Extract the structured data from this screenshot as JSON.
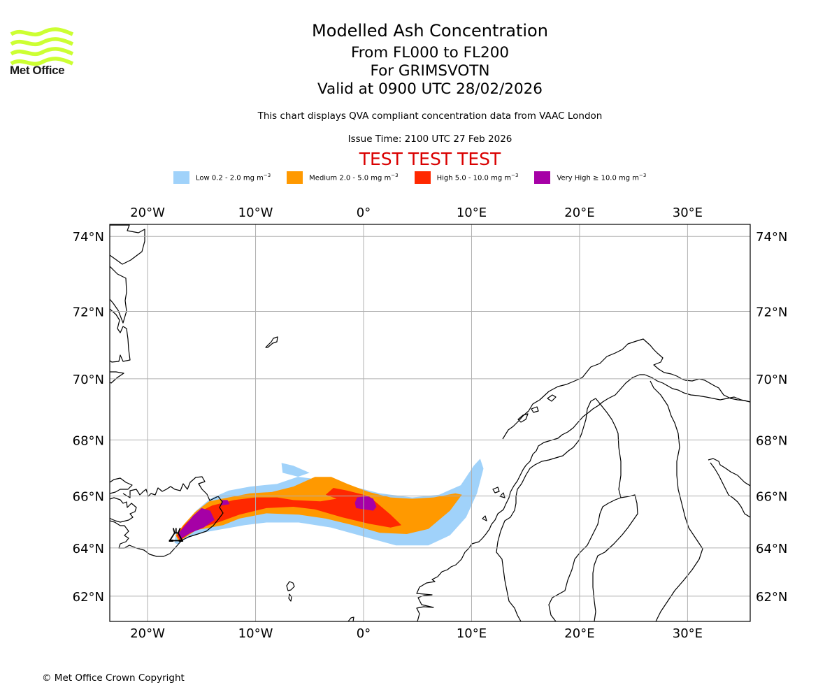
{
  "logo": {
    "text": "Met Office",
    "icon": "met-office-waves-logo",
    "color": "#ccff33"
  },
  "title": {
    "main": "Modelled Ash Concentration",
    "levels": "From FL000 to FL200",
    "volcano": "For GRIMSVOTN",
    "valid": "Valid at 0900 UTC 28/02/2026"
  },
  "subtitle": {
    "description": "This chart displays QVA compliant concentration data from VAAC London",
    "issue_time": "Issue Time: 2100 UTC 27 Feb 2026",
    "test_banner": "TEST TEST TEST",
    "test_color": "#d90000"
  },
  "legend": [
    {
      "label": "Low 0.2 - 2.0 mg m",
      "unit_exp": "−3",
      "color": "#a0d2fa"
    },
    {
      "label": "Medium 2.0 - 5.0 mg m",
      "unit_exp": "−3",
      "color": "#ff9900"
    },
    {
      "label": "High 5.0 - 10.0 mg m",
      "unit_exp": "−3",
      "color": "#ff2800"
    },
    {
      "label": "Very High ≥ 10.0 mg m",
      "unit_exp": "−3",
      "color": "#a600a6"
    }
  ],
  "chart_data": {
    "type": "heatmap",
    "title": "Modelled Ash Concentration",
    "projection": "mercator",
    "extent": {
      "lon": [
        -23.5,
        35.8
      ],
      "lat": [
        60.9,
        74.3
      ]
    },
    "grid": true,
    "x_ticks": [
      "20°W",
      "10°W",
      "0°",
      "10°E",
      "20°E",
      "30°E"
    ],
    "x_tick_values": [
      -20,
      -10,
      0,
      10,
      20,
      30
    ],
    "y_ticks": [
      "74°N",
      "72°N",
      "70°N",
      "68°N",
      "66°N",
      "64°N",
      "62°N"
    ],
    "y_tick_values": [
      74,
      72,
      70,
      68,
      66,
      64,
      62
    ],
    "volcano": {
      "name": "GRIMSVOTN",
      "lon": -17.3,
      "lat": 64.4,
      "symbol": "volcano-icon"
    },
    "levels": [
      {
        "name": "Low",
        "range": "0.2 - 2.0",
        "color": "#a0d2fa",
        "polygon": [
          [
            -17.2,
            64.15
          ],
          [
            -16.5,
            64.35
          ],
          [
            -15,
            64.6
          ],
          [
            -13,
            64.75
          ],
          [
            -11,
            64.9
          ],
          [
            -9,
            65.0
          ],
          [
            -6,
            65.0
          ],
          [
            -3,
            64.8
          ],
          [
            0,
            64.45
          ],
          [
            3,
            64.1
          ],
          [
            6,
            64.1
          ],
          [
            8,
            64.5
          ],
          [
            9.5,
            65.2
          ],
          [
            10.5,
            66.1
          ],
          [
            11.1,
            67.0
          ],
          [
            10.8,
            67.35
          ],
          [
            10.2,
            67.1
          ],
          [
            9,
            66.4
          ],
          [
            7,
            66.05
          ],
          [
            4.5,
            65.95
          ],
          [
            1.5,
            66.1
          ],
          [
            -0.5,
            66.3
          ],
          [
            -2.5,
            66.45
          ],
          [
            -4,
            66.6
          ],
          [
            -6,
            66.7
          ],
          [
            -7.5,
            66.85
          ],
          [
            -7.6,
            67.2
          ],
          [
            -6.5,
            67.1
          ],
          [
            -5,
            66.85
          ],
          [
            -8,
            66.45
          ],
          [
            -10.5,
            66.35
          ],
          [
            -12.5,
            66.2
          ],
          [
            -14.2,
            65.9
          ],
          [
            -15.5,
            65.45
          ],
          [
            -16.6,
            64.9
          ],
          [
            -17.4,
            64.55
          ],
          [
            -17.5,
            64.2
          ]
        ]
      },
      {
        "name": "Medium",
        "range": "2.0 - 5.0",
        "color": "#ff9900",
        "polygon": [
          [
            -17.1,
            64.25
          ],
          [
            -15.5,
            64.7
          ],
          [
            -13,
            64.9
          ],
          [
            -11.5,
            65.15
          ],
          [
            -9,
            65.35
          ],
          [
            -6,
            65.3
          ],
          [
            -3.5,
            65.15
          ],
          [
            -1,
            64.9
          ],
          [
            1.5,
            64.6
          ],
          [
            4,
            64.55
          ],
          [
            6,
            64.75
          ],
          [
            8,
            65.45
          ],
          [
            9.1,
            66.05
          ],
          [
            8.5,
            66.1
          ],
          [
            6.5,
            65.95
          ],
          [
            4.5,
            65.9
          ],
          [
            2.5,
            65.95
          ],
          [
            0.5,
            66.15
          ],
          [
            -1.5,
            66.45
          ],
          [
            -3,
            66.7
          ],
          [
            -4.5,
            66.7
          ],
          [
            -6.5,
            66.35
          ],
          [
            -8.5,
            66.15
          ],
          [
            -10.5,
            66.1
          ],
          [
            -12.5,
            65.95
          ],
          [
            -14.3,
            65.8
          ],
          [
            -15.6,
            65.4
          ],
          [
            -16.7,
            64.9
          ],
          [
            -17.4,
            64.5
          ]
        ]
      },
      {
        "name": "High",
        "range": "5.0 - 10.0",
        "color": "#ff2800",
        "polygon": [
          [
            -17.0,
            64.3
          ],
          [
            -15.5,
            64.75
          ],
          [
            -13.5,
            65.0
          ],
          [
            -11.5,
            65.3
          ],
          [
            -9,
            65.55
          ],
          [
            -6.5,
            65.6
          ],
          [
            -4.5,
            65.5
          ],
          [
            -2,
            65.2
          ],
          [
            0.5,
            64.95
          ],
          [
            2.5,
            64.8
          ],
          [
            3.5,
            64.9
          ],
          [
            2.5,
            65.3
          ],
          [
            1.5,
            65.65
          ],
          [
            0.5,
            66.0
          ],
          [
            -1.5,
            66.2
          ],
          [
            -2.8,
            66.3
          ],
          [
            -3.5,
            66.05
          ],
          [
            -2.5,
            65.9
          ],
          [
            -4,
            65.8
          ],
          [
            -6.5,
            65.85
          ],
          [
            -8,
            65.95
          ],
          [
            -10,
            65.95
          ],
          [
            -12,
            65.85
          ],
          [
            -14,
            65.65
          ],
          [
            -15.5,
            65.35
          ],
          [
            -16.6,
            64.9
          ],
          [
            -17.3,
            64.5
          ]
        ]
      },
      {
        "name": "Very High",
        "range": "≥ 10.0",
        "color": "#a600a6",
        "polygon": [
          [
            -17.0,
            64.35
          ],
          [
            -16,
            64.6
          ],
          [
            -14.8,
            64.8
          ],
          [
            -13.8,
            65.1
          ],
          [
            -14.2,
            65.45
          ],
          [
            -15,
            65.55
          ],
          [
            -15.8,
            65.25
          ],
          [
            -16.5,
            64.9
          ],
          [
            -17.2,
            64.55
          ]
        ]
      },
      {
        "name": "Very High",
        "range": "≥ 10.0",
        "color": "#a600a6",
        "polygon": [
          [
            -0.7,
            65.55
          ],
          [
            0.9,
            65.45
          ],
          [
            1.2,
            65.6
          ],
          [
            0.9,
            65.9
          ],
          [
            0.3,
            66.0
          ],
          [
            -0.6,
            65.95
          ],
          [
            -0.8,
            65.75
          ]
        ]
      },
      {
        "name": "Very High",
        "range": "≥ 10.0",
        "color": "#a600a6",
        "polygon": [
          [
            -13.2,
            65.65
          ],
          [
            -12.4,
            65.7
          ],
          [
            -12.6,
            65.85
          ],
          [
            -13.1,
            65.85
          ]
        ]
      }
    ]
  },
  "footer": {
    "copyright": "© Met Office Crown Copyright"
  }
}
